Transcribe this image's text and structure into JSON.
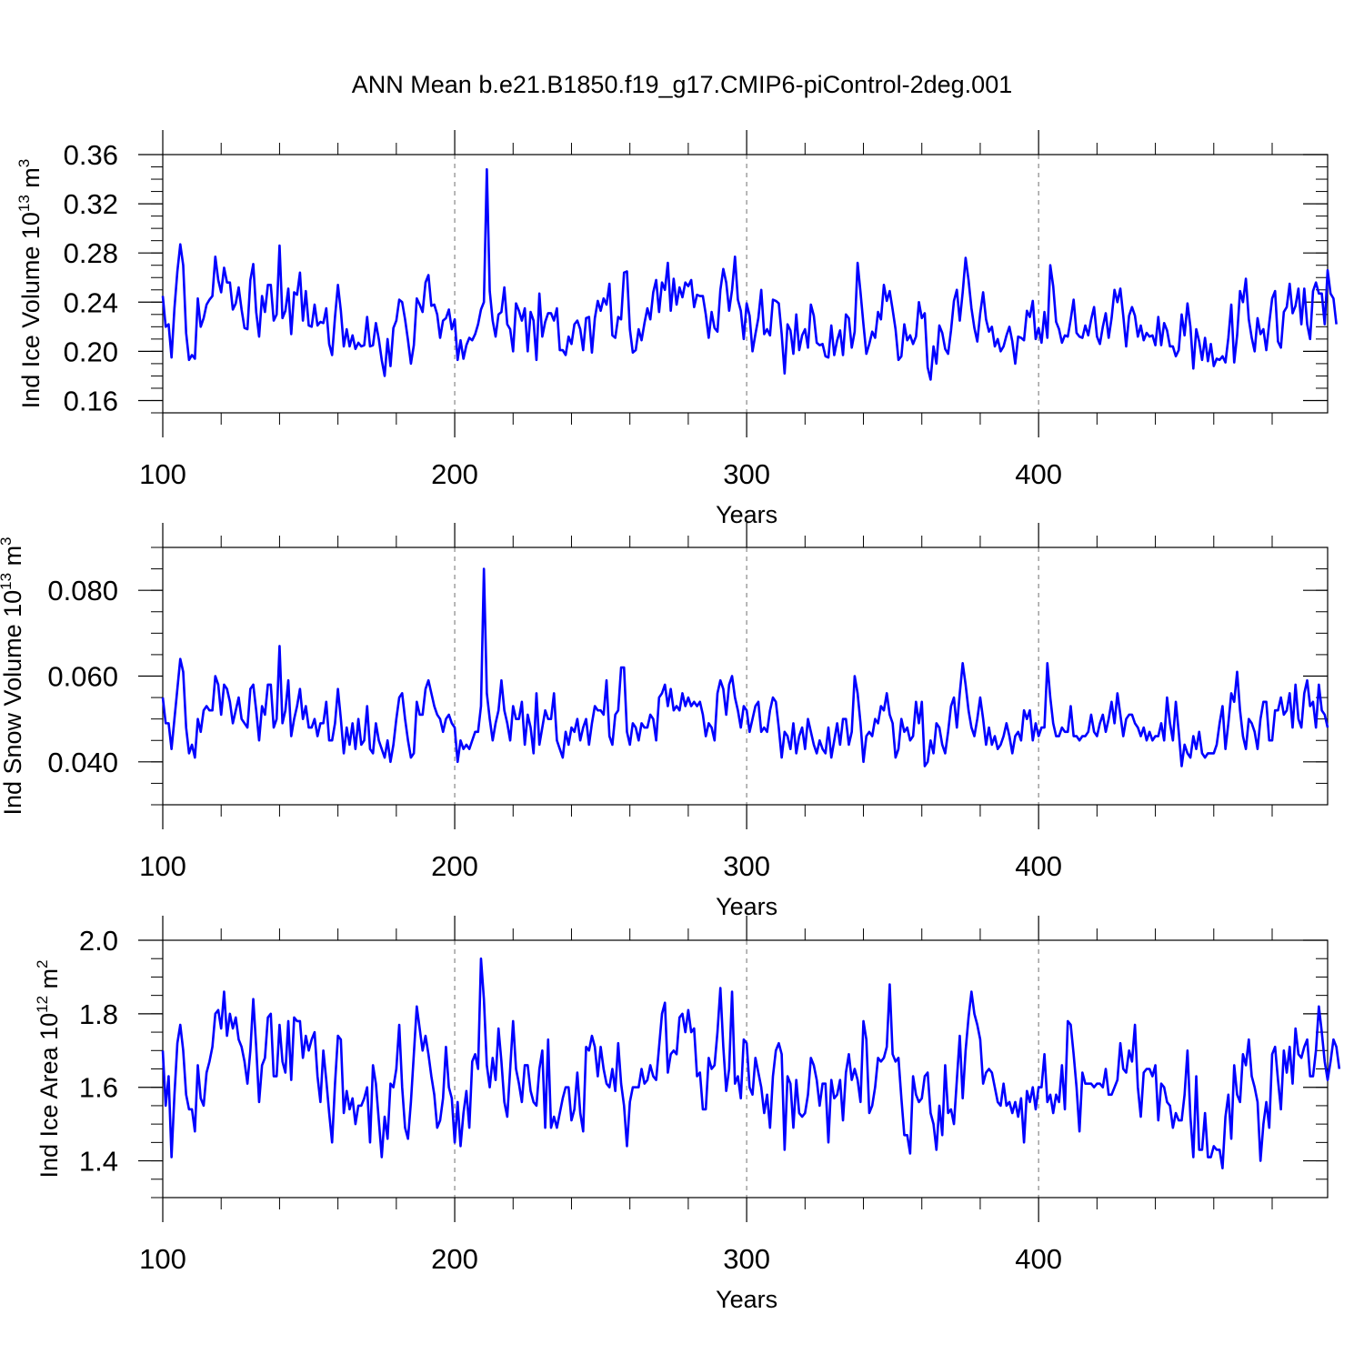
{
  "title": "ANN Mean b.e21.B1850.f19_g17.CMIP6-piControl-2deg.001",
  "line_color": "#0000ff",
  "chart_data": [
    {
      "type": "line",
      "ylabel": "Ind Ice Volume 10",
      "ylabel_sup": "13",
      "ylabel_unit": "m",
      "ylabel_unit_sup": "3",
      "xlabel": "Years",
      "xlim": [
        100,
        499
      ],
      "ylim": [
        0.15,
        0.36
      ],
      "yticks": [
        0.16,
        0.2,
        0.24,
        0.28,
        0.32,
        0.36
      ],
      "ytick_labels": [
        "0.16",
        "0.20",
        "0.24",
        "0.28",
        "0.32",
        "0.36"
      ],
      "xticks": [
        100,
        200,
        300,
        400
      ],
      "xtick_labels": [
        "100",
        "200",
        "300",
        "400"
      ],
      "grid_x": [
        200,
        300,
        400
      ],
      "x_start": 100,
      "values": [
        0.245,
        0.22,
        0.222,
        0.195,
        0.235,
        0.265,
        0.287,
        0.27,
        0.215,
        0.193,
        0.197,
        0.194,
        0.243,
        0.22,
        0.227,
        0.238,
        0.242,
        0.245,
        0.277,
        0.258,
        0.248,
        0.268,
        0.256,
        0.256,
        0.234,
        0.239,
        0.252,
        0.234,
        0.219,
        0.218,
        0.258,
        0.271,
        0.232,
        0.212,
        0.245,
        0.232,
        0.254,
        0.254,
        0.225,
        0.23,
        0.286,
        0.227,
        0.233,
        0.251,
        0.214,
        0.248,
        0.246,
        0.264,
        0.225,
        0.249,
        0.221,
        0.22,
        0.238,
        0.221,
        0.224,
        0.223,
        0.235,
        0.206,
        0.197,
        0.228,
        0.254,
        0.233,
        0.204,
        0.218,
        0.204,
        0.213,
        0.202,
        0.207,
        0.204,
        0.205,
        0.228,
        0.204,
        0.205,
        0.223,
        0.21,
        0.193,
        0.18,
        0.21,
        0.188,
        0.219,
        0.225,
        0.242,
        0.24,
        0.226,
        0.209,
        0.19,
        0.205,
        0.243,
        0.238,
        0.232,
        0.256,
        0.262,
        0.237,
        0.238,
        0.23,
        0.211,
        0.225,
        0.227,
        0.234,
        0.218,
        0.226,
        0.193,
        0.209,
        0.194,
        0.205,
        0.211,
        0.209,
        0.214,
        0.222,
        0.234,
        0.24,
        0.348,
        0.249,
        0.225,
        0.212,
        0.23,
        0.232,
        0.252,
        0.222,
        0.218,
        0.2,
        0.239,
        0.233,
        0.225,
        0.235,
        0.2,
        0.232,
        0.225,
        0.193,
        0.247,
        0.212,
        0.224,
        0.231,
        0.231,
        0.225,
        0.235,
        0.201,
        0.201,
        0.197,
        0.212,
        0.206,
        0.222,
        0.225,
        0.218,
        0.201,
        0.227,
        0.228,
        0.199,
        0.227,
        0.241,
        0.233,
        0.243,
        0.238,
        0.255,
        0.213,
        0.211,
        0.228,
        0.226,
        0.264,
        0.265,
        0.218,
        0.199,
        0.201,
        0.218,
        0.209,
        0.223,
        0.235,
        0.226,
        0.248,
        0.258,
        0.232,
        0.256,
        0.25,
        0.272,
        0.233,
        0.259,
        0.238,
        0.252,
        0.244,
        0.256,
        0.253,
        0.258,
        0.236,
        0.246,
        0.245,
        0.245,
        0.23,
        0.211,
        0.232,
        0.219,
        0.216,
        0.25,
        0.267,
        0.256,
        0.233,
        0.25,
        0.277,
        0.242,
        0.233,
        0.21,
        0.239,
        0.229,
        0.2,
        0.214,
        0.227,
        0.25,
        0.214,
        0.218,
        0.213,
        0.242,
        0.241,
        0.239,
        0.214,
        0.182,
        0.222,
        0.217,
        0.198,
        0.23,
        0.201,
        0.213,
        0.218,
        0.203,
        0.238,
        0.229,
        0.207,
        0.205,
        0.206,
        0.196,
        0.195,
        0.221,
        0.197,
        0.209,
        0.217,
        0.197,
        0.23,
        0.227,
        0.203,
        0.216,
        0.272,
        0.248,
        0.222,
        0.198,
        0.206,
        0.216,
        0.211,
        0.232,
        0.226,
        0.254,
        0.241,
        0.249,
        0.234,
        0.218,
        0.193,
        0.196,
        0.222,
        0.209,
        0.213,
        0.206,
        0.212,
        0.24,
        0.227,
        0.231,
        0.187,
        0.177,
        0.204,
        0.19,
        0.221,
        0.215,
        0.202,
        0.198,
        0.217,
        0.241,
        0.25,
        0.225,
        0.248,
        0.276,
        0.258,
        0.235,
        0.219,
        0.208,
        0.231,
        0.248,
        0.226,
        0.216,
        0.22,
        0.204,
        0.21,
        0.2,
        0.204,
        0.213,
        0.22,
        0.208,
        0.19,
        0.212,
        0.211,
        0.209,
        0.233,
        0.228,
        0.241,
        0.21,
        0.219,
        0.207,
        0.232,
        0.211,
        0.27,
        0.253,
        0.224,
        0.218,
        0.207,
        0.213,
        0.212,
        0.226,
        0.242,
        0.215,
        0.212,
        0.211,
        0.221,
        0.213,
        0.226,
        0.236,
        0.212,
        0.206,
        0.22,
        0.231,
        0.211,
        0.227,
        0.25,
        0.24,
        0.251,
        0.229,
        0.204,
        0.229,
        0.236,
        0.229,
        0.212,
        0.221,
        0.209,
        0.215,
        0.212,
        0.213,
        0.205,
        0.228,
        0.205,
        0.223,
        0.217,
        0.204,
        0.204,
        0.196,
        0.201,
        0.23,
        0.213,
        0.239,
        0.22,
        0.186,
        0.218,
        0.208,
        0.193,
        0.211,
        0.192,
        0.206,
        0.188,
        0.194,
        0.193,
        0.196,
        0.191,
        0.211,
        0.238,
        0.191,
        0.213,
        0.249,
        0.24,
        0.259,
        0.226,
        0.211,
        0.2,
        0.227,
        0.214,
        0.218,
        0.201,
        0.223,
        0.243,
        0.249,
        0.208,
        0.203,
        0.232,
        0.236,
        0.255,
        0.231,
        0.237,
        0.251,
        0.222,
        0.251,
        0.222,
        0.21,
        0.249,
        0.256,
        0.247,
        0.247,
        0.222,
        0.266,
        0.247,
        0.243,
        0.222
      ]
    },
    {
      "type": "line",
      "ylabel": "Ind Snow Volume 10",
      "ylabel_sup": "13",
      "ylabel_unit": "m",
      "ylabel_unit_sup": "3",
      "xlabel": "Years",
      "xlim": [
        100,
        499
      ],
      "ylim": [
        0.03,
        0.09
      ],
      "yticks": [
        0.04,
        0.06,
        0.08
      ],
      "ytick_labels": [
        "0.040",
        "0.060",
        "0.080"
      ],
      "xticks": [
        100,
        200,
        300,
        400
      ],
      "xtick_labels": [
        "100",
        "200",
        "300",
        "400"
      ],
      "grid_x": [
        200,
        300,
        400
      ],
      "x_start": 100,
      "values": [
        0.055,
        0.049,
        0.049,
        0.043,
        0.05,
        0.057,
        0.064,
        0.061,
        0.048,
        0.042,
        0.044,
        0.041,
        0.05,
        0.047,
        0.052,
        0.053,
        0.052,
        0.052,
        0.06,
        0.058,
        0.051,
        0.058,
        0.057,
        0.054,
        0.049,
        0.052,
        0.055,
        0.05,
        0.049,
        0.048,
        0.057,
        0.058,
        0.052,
        0.045,
        0.053,
        0.051,
        0.058,
        0.058,
        0.048,
        0.05,
        0.067,
        0.049,
        0.052,
        0.059,
        0.046,
        0.05,
        0.053,
        0.057,
        0.05,
        0.053,
        0.048,
        0.048,
        0.05,
        0.046,
        0.049,
        0.049,
        0.054,
        0.045,
        0.045,
        0.049,
        0.057,
        0.05,
        0.042,
        0.048,
        0.044,
        0.049,
        0.043,
        0.05,
        0.044,
        0.045,
        0.053,
        0.043,
        0.042,
        0.049,
        0.045,
        0.043,
        0.041,
        0.045,
        0.04,
        0.044,
        0.05,
        0.055,
        0.056,
        0.05,
        0.045,
        0.041,
        0.042,
        0.054,
        0.051,
        0.051,
        0.057,
        0.059,
        0.056,
        0.053,
        0.051,
        0.05,
        0.047,
        0.05,
        0.051,
        0.049,
        0.048,
        0.04,
        0.045,
        0.043,
        0.044,
        0.043,
        0.045,
        0.047,
        0.047,
        0.053,
        0.085,
        0.056,
        0.05,
        0.045,
        0.049,
        0.052,
        0.059,
        0.052,
        0.049,
        0.045,
        0.053,
        0.05,
        0.05,
        0.054,
        0.044,
        0.051,
        0.048,
        0.042,
        0.056,
        0.044,
        0.048,
        0.052,
        0.05,
        0.05,
        0.056,
        0.045,
        0.043,
        0.041,
        0.047,
        0.044,
        0.048,
        0.047,
        0.05,
        0.045,
        0.048,
        0.05,
        0.044,
        0.049,
        0.053,
        0.052,
        0.052,
        0.051,
        0.059,
        0.046,
        0.044,
        0.051,
        0.052,
        0.062,
        0.062,
        0.047,
        0.044,
        0.049,
        0.048,
        0.045,
        0.049,
        0.048,
        0.048,
        0.051,
        0.05,
        0.045,
        0.055,
        0.056,
        0.058,
        0.053,
        0.057,
        0.052,
        0.053,
        0.052,
        0.056,
        0.053,
        0.055,
        0.053,
        0.054,
        0.053,
        0.054,
        0.051,
        0.046,
        0.049,
        0.048,
        0.045,
        0.056,
        0.059,
        0.057,
        0.051,
        0.058,
        0.06,
        0.055,
        0.052,
        0.048,
        0.053,
        0.052,
        0.047,
        0.05,
        0.053,
        0.054,
        0.047,
        0.048,
        0.047,
        0.052,
        0.055,
        0.054,
        0.048,
        0.041,
        0.047,
        0.046,
        0.043,
        0.049,
        0.042,
        0.046,
        0.048,
        0.043,
        0.05,
        0.047,
        0.044,
        0.042,
        0.045,
        0.043,
        0.042,
        0.048,
        0.041,
        0.045,
        0.049,
        0.044,
        0.05,
        0.05,
        0.044,
        0.047,
        0.06,
        0.056,
        0.049,
        0.04,
        0.046,
        0.047,
        0.046,
        0.05,
        0.049,
        0.053,
        0.052,
        0.056,
        0.051,
        0.049,
        0.041,
        0.043,
        0.05,
        0.047,
        0.048,
        0.045,
        0.046,
        0.054,
        0.049,
        0.054,
        0.039,
        0.04,
        0.045,
        0.042,
        0.049,
        0.048,
        0.044,
        0.042,
        0.047,
        0.053,
        0.055,
        0.048,
        0.056,
        0.063,
        0.058,
        0.052,
        0.048,
        0.046,
        0.05,
        0.055,
        0.05,
        0.044,
        0.048,
        0.044,
        0.046,
        0.043,
        0.044,
        0.046,
        0.049,
        0.046,
        0.042,
        0.046,
        0.047,
        0.045,
        0.052,
        0.05,
        0.052,
        0.045,
        0.049,
        0.046,
        0.048,
        0.048,
        0.063,
        0.055,
        0.049,
        0.046,
        0.046,
        0.048,
        0.047,
        0.047,
        0.053,
        0.046,
        0.046,
        0.045,
        0.046,
        0.046,
        0.047,
        0.051,
        0.047,
        0.046,
        0.049,
        0.051,
        0.047,
        0.05,
        0.054,
        0.049,
        0.056,
        0.051,
        0.046,
        0.05,
        0.051,
        0.051,
        0.049,
        0.048,
        0.046,
        0.048,
        0.045,
        0.047,
        0.045,
        0.046,
        0.046,
        0.049,
        0.045,
        0.055,
        0.049,
        0.045,
        0.054,
        0.047,
        0.039,
        0.044,
        0.042,
        0.041,
        0.046,
        0.043,
        0.047,
        0.042,
        0.041,
        0.042,
        0.042,
        0.042,
        0.044,
        0.049,
        0.053,
        0.043,
        0.049,
        0.056,
        0.054,
        0.061,
        0.052,
        0.046,
        0.043,
        0.05,
        0.049,
        0.047,
        0.043,
        0.05,
        0.054,
        0.054,
        0.045,
        0.045,
        0.052,
        0.052,
        0.055,
        0.051,
        0.052,
        0.056,
        0.048,
        0.058,
        0.05,
        0.048,
        0.056,
        0.059,
        0.053,
        0.054,
        0.048,
        0.058,
        0.052,
        0.051,
        0.048
      ]
    },
    {
      "type": "line",
      "ylabel": "Ind Ice Area 10",
      "ylabel_sup": "12",
      "ylabel_unit": "m",
      "ylabel_unit_sup": "2",
      "xlabel": "Years",
      "xlim": [
        100,
        499
      ],
      "ylim": [
        1.3,
        2.0
      ],
      "yticks": [
        1.4,
        1.6,
        1.8,
        2.0
      ],
      "ytick_labels": [
        "1.4",
        "1.6",
        "1.8",
        "2.0"
      ],
      "xticks": [
        100,
        200,
        300,
        400
      ],
      "xtick_labels": [
        "100",
        "200",
        "300",
        "400"
      ],
      "grid_x": [
        200,
        300,
        400
      ],
      "x_start": 100,
      "values": [
        1.7,
        1.55,
        1.63,
        1.41,
        1.58,
        1.72,
        1.77,
        1.7,
        1.58,
        1.54,
        1.54,
        1.48,
        1.66,
        1.57,
        1.55,
        1.64,
        1.67,
        1.71,
        1.8,
        1.81,
        1.76,
        1.86,
        1.74,
        1.8,
        1.76,
        1.79,
        1.73,
        1.71,
        1.67,
        1.61,
        1.7,
        1.84,
        1.71,
        1.56,
        1.66,
        1.68,
        1.79,
        1.8,
        1.63,
        1.63,
        1.77,
        1.67,
        1.64,
        1.78,
        1.62,
        1.79,
        1.78,
        1.78,
        1.68,
        1.74,
        1.7,
        1.73,
        1.75,
        1.63,
        1.56,
        1.7,
        1.62,
        1.53,
        1.45,
        1.61,
        1.74,
        1.73,
        1.53,
        1.59,
        1.54,
        1.57,
        1.5,
        1.55,
        1.55,
        1.57,
        1.6,
        1.45,
        1.66,
        1.61,
        1.51,
        1.41,
        1.52,
        1.46,
        1.61,
        1.6,
        1.65,
        1.77,
        1.6,
        1.49,
        1.46,
        1.56,
        1.69,
        1.82,
        1.76,
        1.7,
        1.74,
        1.69,
        1.63,
        1.58,
        1.49,
        1.51,
        1.57,
        1.71,
        1.6,
        1.57,
        1.45,
        1.56,
        1.44,
        1.53,
        1.59,
        1.49,
        1.67,
        1.69,
        1.65,
        1.95,
        1.84,
        1.66,
        1.6,
        1.68,
        1.62,
        1.76,
        1.67,
        1.56,
        1.52,
        1.65,
        1.78,
        1.65,
        1.61,
        1.56,
        1.66,
        1.66,
        1.59,
        1.56,
        1.55,
        1.65,
        1.7,
        1.49,
        1.73,
        1.49,
        1.52,
        1.49,
        1.53,
        1.57,
        1.6,
        1.6,
        1.51,
        1.54,
        1.64,
        1.53,
        1.48,
        1.71,
        1.7,
        1.74,
        1.71,
        1.63,
        1.71,
        1.65,
        1.61,
        1.6,
        1.65,
        1.59,
        1.72,
        1.61,
        1.55,
        1.44,
        1.56,
        1.6,
        1.6,
        1.6,
        1.65,
        1.61,
        1.62,
        1.66,
        1.63,
        1.62,
        1.71,
        1.8,
        1.83,
        1.64,
        1.69,
        1.7,
        1.69,
        1.79,
        1.8,
        1.75,
        1.81,
        1.75,
        1.76,
        1.63,
        1.64,
        1.54,
        1.54,
        1.68,
        1.65,
        1.66,
        1.75,
        1.87,
        1.71,
        1.59,
        1.65,
        1.86,
        1.61,
        1.63,
        1.57,
        1.73,
        1.72,
        1.6,
        1.58,
        1.68,
        1.64,
        1.6,
        1.53,
        1.58,
        1.49,
        1.63,
        1.7,
        1.72,
        1.69,
        1.43,
        1.63,
        1.61,
        1.49,
        1.62,
        1.53,
        1.52,
        1.53,
        1.58,
        1.68,
        1.66,
        1.62,
        1.55,
        1.61,
        1.61,
        1.45,
        1.62,
        1.57,
        1.58,
        1.62,
        1.51,
        1.64,
        1.69,
        1.62,
        1.65,
        1.62,
        1.56,
        1.78,
        1.73,
        1.53,
        1.55,
        1.6,
        1.68,
        1.67,
        1.68,
        1.71,
        1.88,
        1.69,
        1.67,
        1.68,
        1.57,
        1.47,
        1.47,
        1.42,
        1.63,
        1.58,
        1.56,
        1.57,
        1.63,
        1.64,
        1.53,
        1.5,
        1.43,
        1.55,
        1.47,
        1.66,
        1.53,
        1.54,
        1.5,
        1.62,
        1.74,
        1.57,
        1.7,
        1.79,
        1.86,
        1.8,
        1.77,
        1.73,
        1.61,
        1.64,
        1.65,
        1.64,
        1.6,
        1.56,
        1.55,
        1.61,
        1.55,
        1.56,
        1.53,
        1.56,
        1.52,
        1.57,
        1.45,
        1.59,
        1.56,
        1.6,
        1.54,
        1.6,
        1.6,
        1.69,
        1.56,
        1.58,
        1.53,
        1.58,
        1.56,
        1.66,
        1.54,
        1.78,
        1.77,
        1.69,
        1.6,
        1.48,
        1.64,
        1.61,
        1.61,
        1.61,
        1.6,
        1.61,
        1.61,
        1.6,
        1.65,
        1.58,
        1.58,
        1.6,
        1.62,
        1.72,
        1.65,
        1.64,
        1.7,
        1.67,
        1.77,
        1.6,
        1.52,
        1.64,
        1.65,
        1.65,
        1.63,
        1.66,
        1.51,
        1.61,
        1.6,
        1.56,
        1.55,
        1.49,
        1.53,
        1.51,
        1.51,
        1.58,
        1.7,
        1.52,
        1.41,
        1.63,
        1.43,
        1.43,
        1.53,
        1.41,
        1.41,
        1.44,
        1.43,
        1.43,
        1.38,
        1.52,
        1.58,
        1.46,
        1.66,
        1.58,
        1.56,
        1.69,
        1.66,
        1.73,
        1.63,
        1.6,
        1.56,
        1.4,
        1.5,
        1.56,
        1.49,
        1.69,
        1.71,
        1.62,
        1.54,
        1.7,
        1.64,
        1.71,
        1.61,
        1.76,
        1.69,
        1.68,
        1.71,
        1.73,
        1.63,
        1.63,
        1.7,
        1.82,
        1.75,
        1.67,
        1.62,
        1.67,
        1.73,
        1.71,
        1.65
      ]
    }
  ]
}
